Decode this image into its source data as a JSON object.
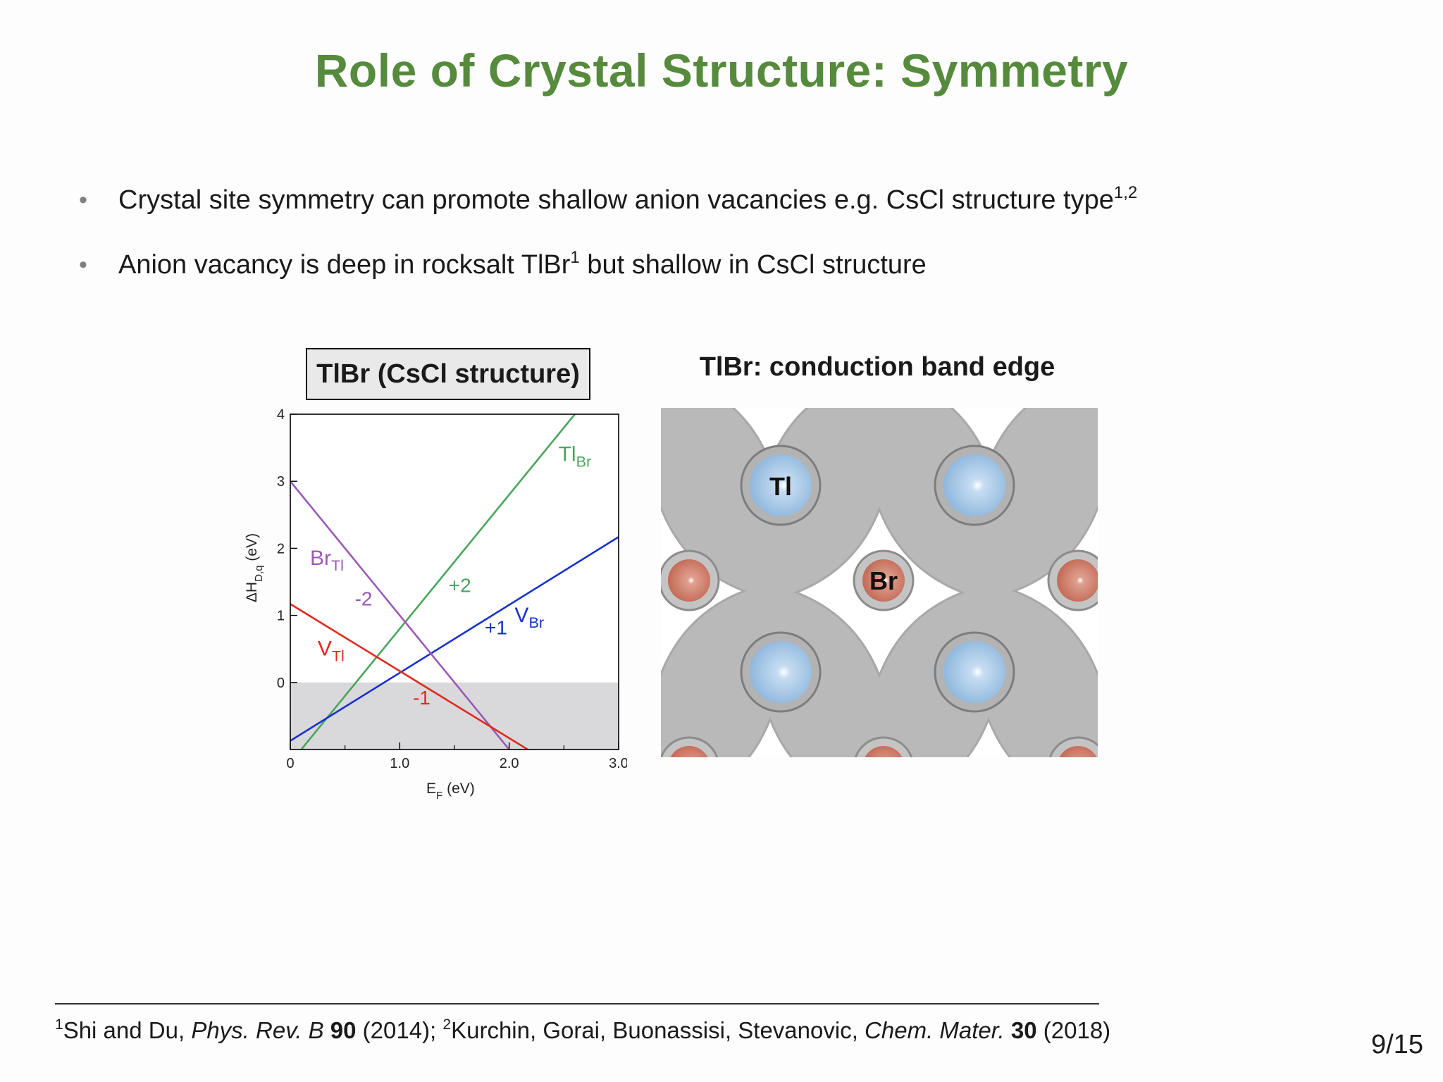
{
  "slide": {
    "title": "Role of Crystal Structure: Symmetry",
    "page_number": "9/15"
  },
  "bullets": [
    {
      "text": "Crystal site symmetry can promote shallow anion vacancies e.g. CsCl structure type",
      "sup": "1,2"
    },
    {
      "text_before": "Anion vacancy is deep in rocksalt TlBr",
      "sup": "1",
      "text_after": " but shallow in CsCl structure"
    }
  ],
  "chart_panel": {
    "title": "TlBr (CsCl structure)"
  },
  "chart_data": {
    "type": "line",
    "xlabel_main": "E",
    "xlabel_sub": "F",
    "xlabel_unit": " (eV)",
    "ylabel_main": "ΔH",
    "ylabel_sub": "D,q",
    "ylabel_unit": " (eV)",
    "xlim": [
      0,
      3.0
    ],
    "ylim": [
      -1,
      4
    ],
    "x_ticks": [
      {
        "v": 0,
        "label": "0"
      },
      {
        "v": 1.0,
        "label": "1.0"
      },
      {
        "v": 2.0,
        "label": "2.0"
      },
      {
        "v": 3.0,
        "label": "3.0"
      }
    ],
    "x_minor_ticks": [
      0.5,
      1.5,
      2.5
    ],
    "y_ticks": [
      {
        "v": 0,
        "label": "0"
      },
      {
        "v": 1,
        "label": "1"
      },
      {
        "v": 2,
        "label": "2"
      },
      {
        "v": 3,
        "label": "3"
      },
      {
        "v": 4,
        "label": "4"
      }
    ],
    "shaded_region": {
      "y_from": -1,
      "y_to": 0,
      "color": "#d9d9db"
    },
    "series": [
      {
        "name": "Tl",
        "name_sub": "Br",
        "charge_label": "+2",
        "color": "#4aa55c",
        "points": [
          [
            0.1,
            -1.0
          ],
          [
            2.6,
            4.0
          ]
        ]
      },
      {
        "name": "V",
        "name_sub": "Br",
        "charge_label": "+1",
        "color": "#1530d0",
        "points": [
          [
            0,
            -0.87
          ],
          [
            3.0,
            2.17
          ]
        ]
      },
      {
        "name": "Br",
        "name_sub": "Tl",
        "charge_label": "-2",
        "color": "#9b59b6",
        "points": [
          [
            0,
            3.0
          ],
          [
            2.0,
            -1.0
          ]
        ]
      },
      {
        "name": "V",
        "name_sub": "Tl",
        "charge_label": "-1",
        "color": "#e02a1c",
        "points": [
          [
            0,
            1.17
          ],
          [
            2.17,
            -1.0
          ]
        ]
      }
    ],
    "series_labels": [
      {
        "series": 0,
        "x": 2.45,
        "y": 3.3
      },
      {
        "series": 1,
        "x": 2.05,
        "y": 0.9
      },
      {
        "series": 2,
        "x": 0.18,
        "y": 1.75
      },
      {
        "series": 3,
        "x": 0.25,
        "y": 0.4
      }
    ],
    "charge_positions": [
      {
        "series": 0,
        "x": 1.55,
        "y": 1.35
      },
      {
        "series": 1,
        "x": 1.88,
        "y": 0.72
      },
      {
        "series": 2,
        "x": 0.67,
        "y": 1.15
      },
      {
        "series": 3,
        "x": 1.2,
        "y": -0.33
      }
    ]
  },
  "crystal_panel": {
    "title": "TlBr: conduction band edge",
    "atom_labels": {
      "tl": "Tl",
      "br": "Br"
    },
    "colors": {
      "isosurface": "#b9b9b9",
      "tl_atom": "#8fb7dd",
      "br_atom": "#c26a55"
    }
  },
  "footnote": {
    "sup1": "1",
    "ref1_authors": "Shi and Du, ",
    "ref1_journal": "Phys. Rev. B",
    "ref1_volume": "90",
    "ref1_year": " (2014); ",
    "sup2": "2",
    "ref2_authors": "Kurchin, Gorai, Buonassisi, Stevanovic, ",
    "ref2_journal": "Chem. Mater.",
    "ref2_volume": "30",
    "ref2_year": " (2018)"
  }
}
